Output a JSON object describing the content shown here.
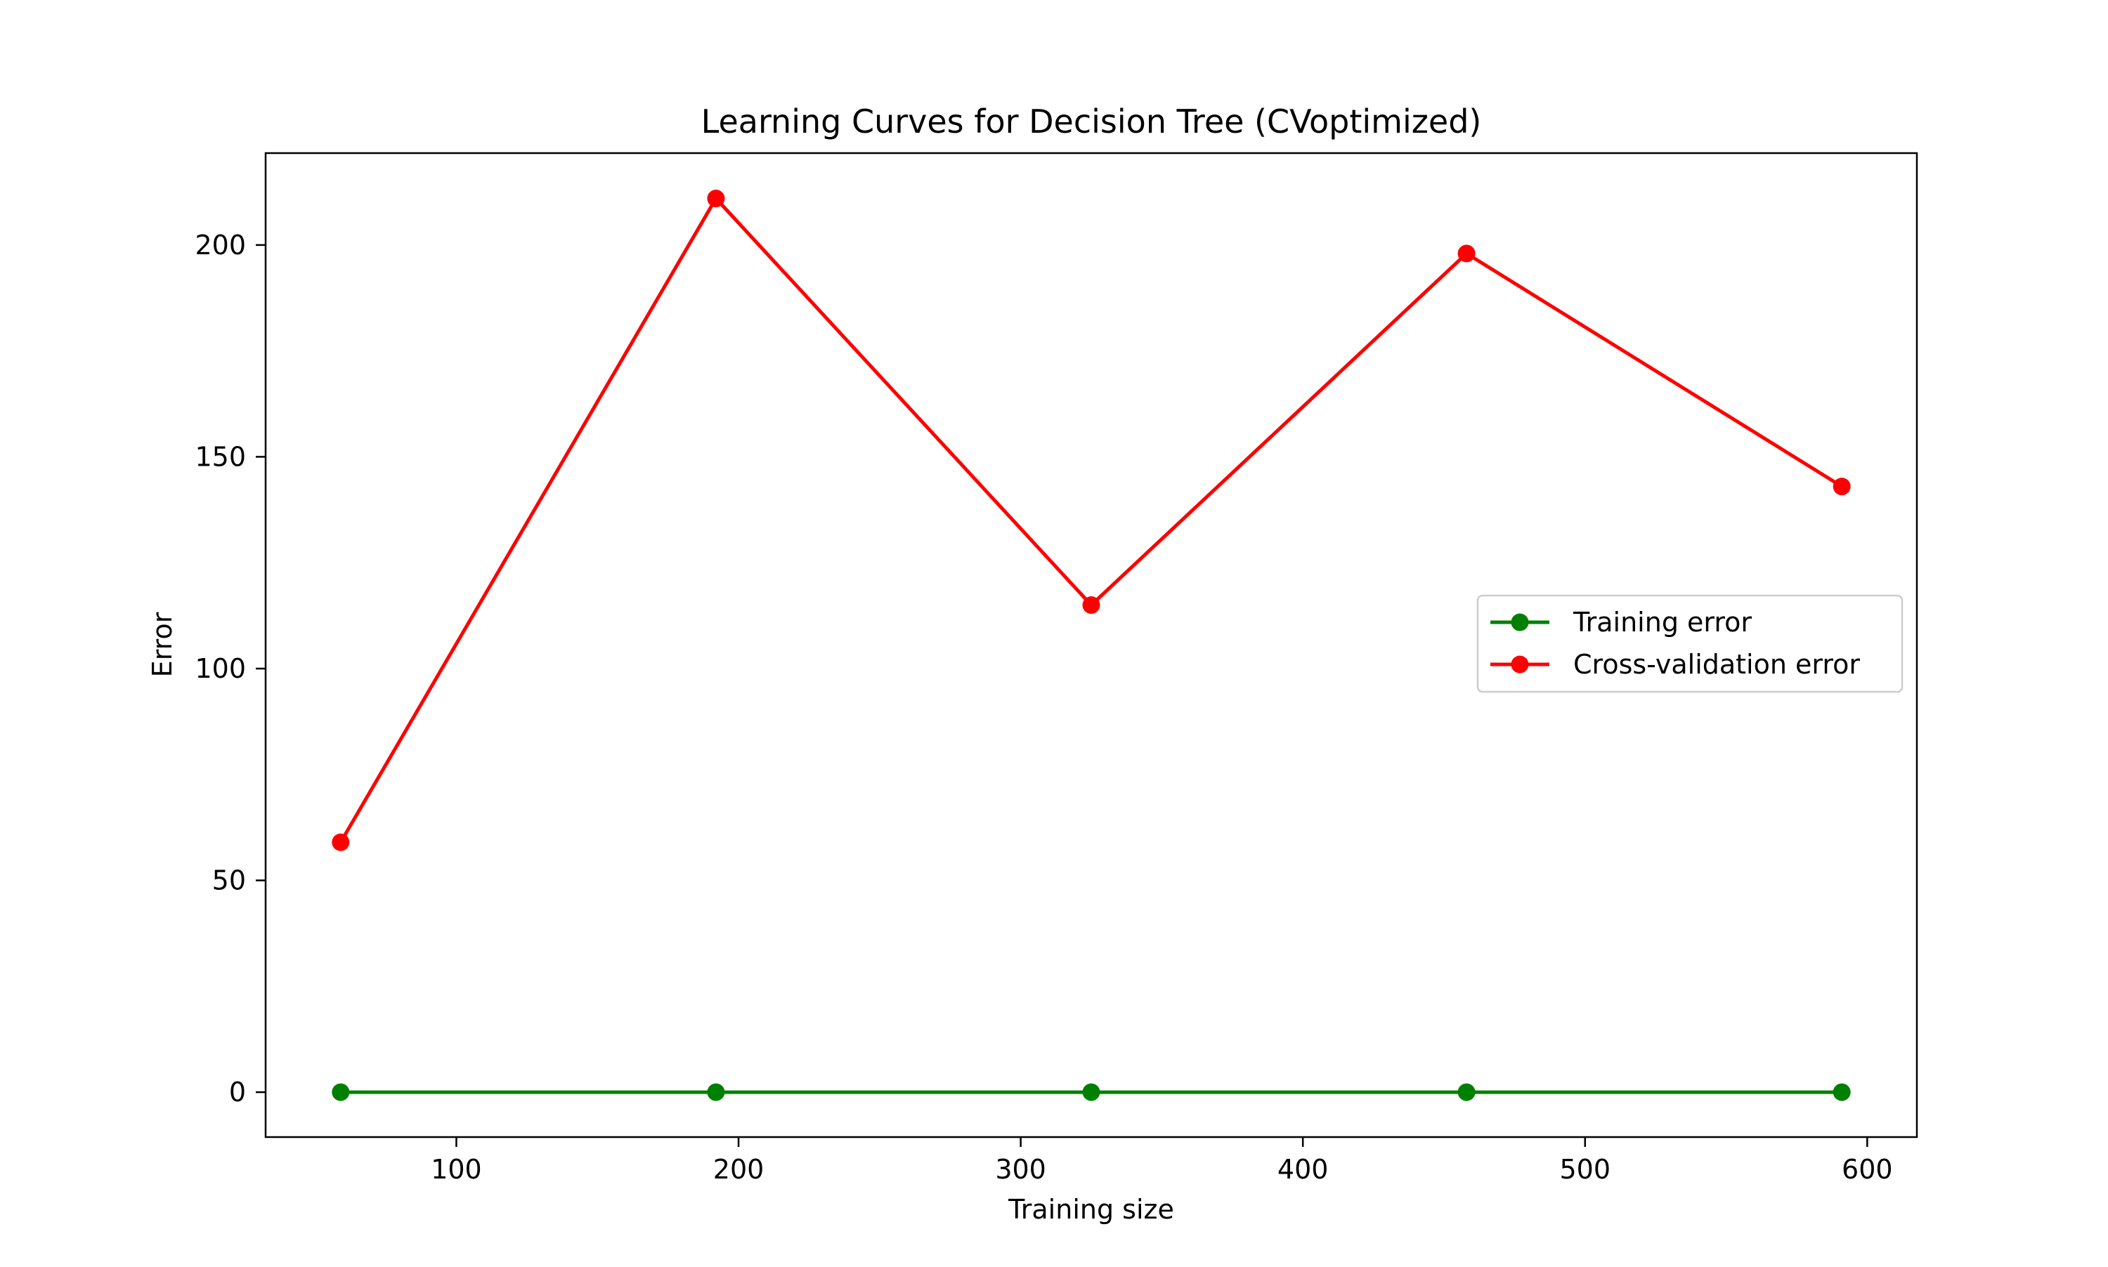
{
  "chart_data": {
    "type": "line",
    "title": "Learning Curves for Decision Tree (CVoptimized)",
    "xlabel": "Training size",
    "ylabel": "Error",
    "x": [
      59,
      192,
      325,
      458,
      591
    ],
    "xlim": [
      32.4,
      617.6
    ],
    "ylim": [
      -10.6,
      221.7
    ],
    "xticks": [
      100,
      200,
      300,
      400,
      500,
      600
    ],
    "yticks": [
      0,
      50,
      100,
      150,
      200
    ],
    "grid": false,
    "legend_position": "center-right",
    "series": [
      {
        "name": "Training error",
        "color": "#008000",
        "marker": "circle",
        "values": [
          0,
          0,
          0,
          0,
          0
        ]
      },
      {
        "name": "Cross-validation error",
        "color": "#ff0000",
        "marker": "circle",
        "values": [
          59,
          211,
          115,
          198,
          143
        ]
      }
    ]
  }
}
